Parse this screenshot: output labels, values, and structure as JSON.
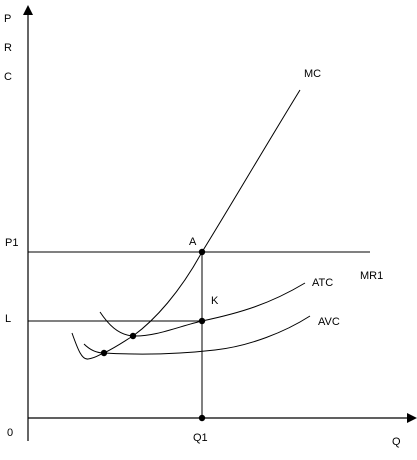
{
  "diagram": {
    "y_axis_label_lines": [
      "P",
      "R",
      "C"
    ],
    "x_axis_label": "Q",
    "origin_label": "0",
    "price_labels": {
      "p1": "P1",
      "l": "L"
    },
    "quantity_label": "Q1",
    "curve_labels": {
      "mc": "MC",
      "atc": "ATC",
      "avc": "AVC",
      "mr1": "MR1"
    },
    "point_labels": {
      "a": "A",
      "k": "K"
    },
    "colors": {
      "line": "#000000",
      "background": "#ffffff"
    }
  }
}
